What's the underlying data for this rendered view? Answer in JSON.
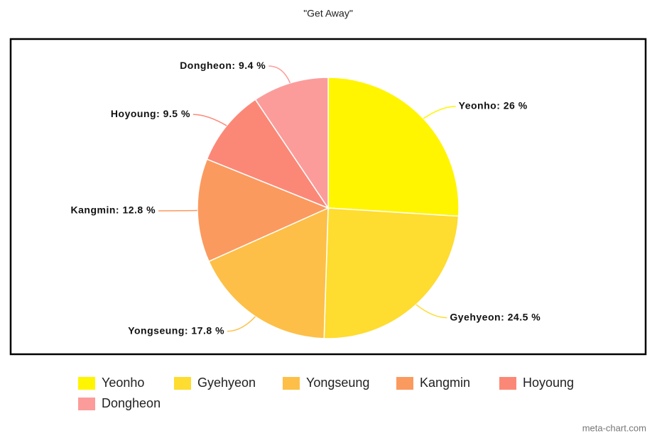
{
  "chart_data": {
    "type": "pie",
    "title": "\"Get Away\"",
    "categories": [
      "Yeonho",
      "Gyehyeon",
      "Yongseung",
      "Kangmin",
      "Hoyoung",
      "Dongheon"
    ],
    "values": [
      26,
      24.5,
      17.8,
      12.8,
      9.5,
      9.4
    ],
    "value_labels": [
      "Yeonho: 26 %",
      "Gyehyeon: 24.5 %",
      "Yongseung: 17.8 %",
      "Kangmin: 12.8 %",
      "Hoyoung: 9.5 %",
      "Dongheon: 9.4 %"
    ],
    "colors": [
      "#fff500",
      "#fedc30",
      "#fdbf47",
      "#fb9a5f",
      "#fb8877",
      "#fb9c9b"
    ],
    "legend": "bottom",
    "source": "meta-chart.com"
  }
}
